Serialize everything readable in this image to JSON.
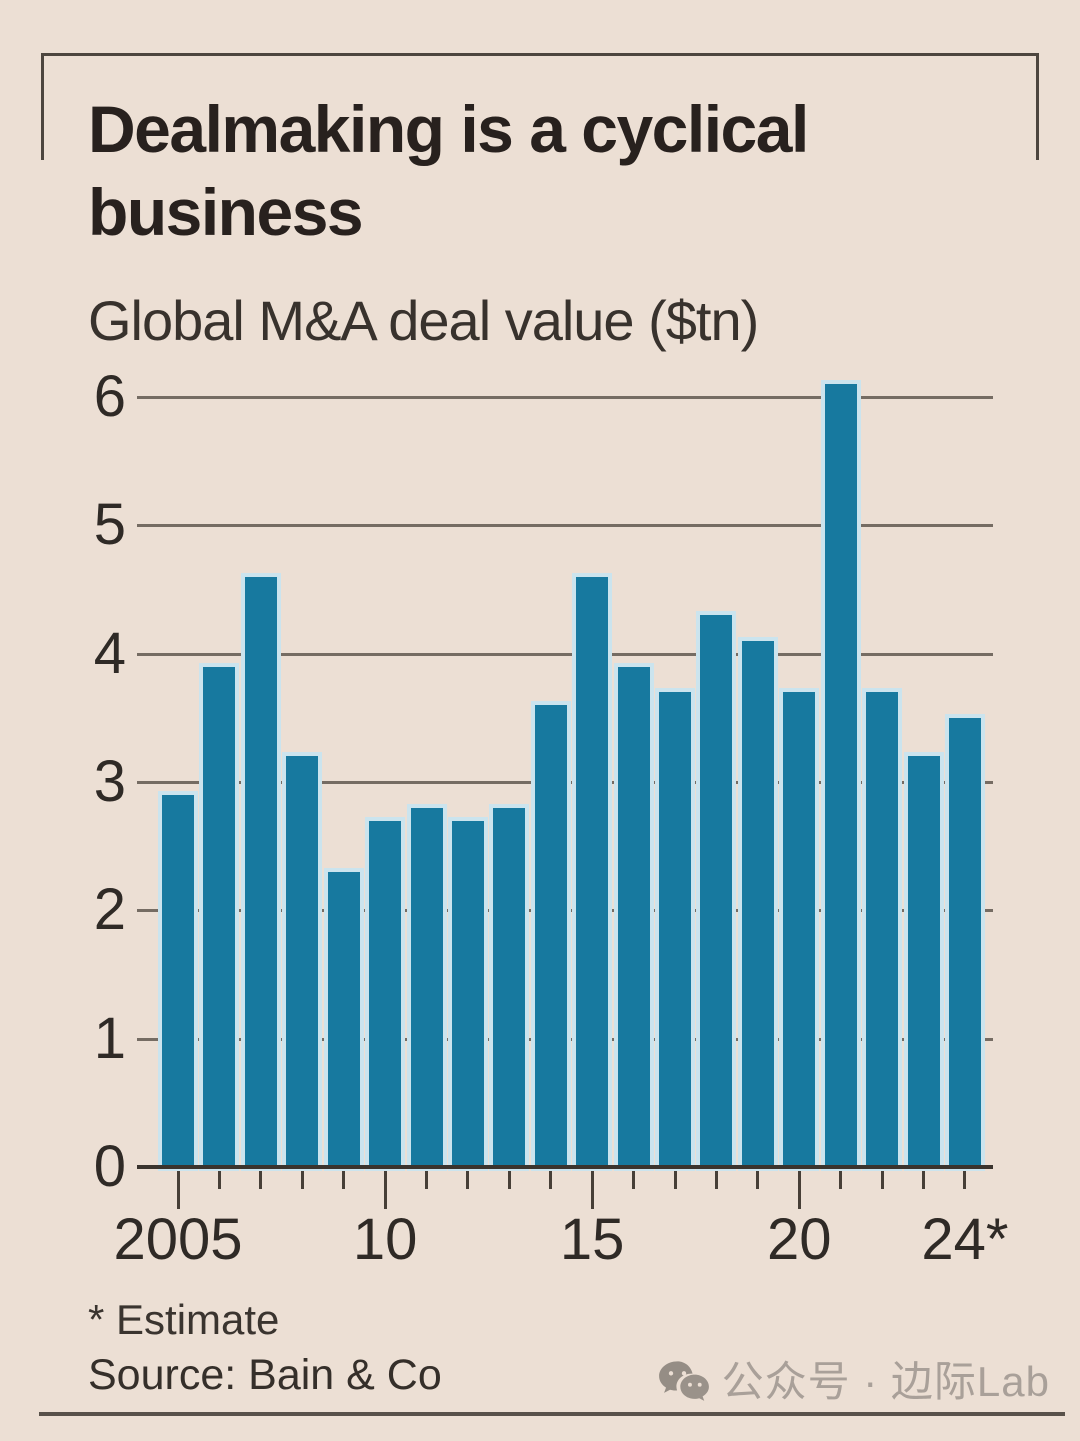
{
  "page": {
    "watermark": {
      "text": "公众号 · 边际Lab",
      "icon": "wechat-logo",
      "color": "#a9a099"
    }
  },
  "chart_data": {
    "type": "bar",
    "title": "Dealmaking is a cyclical\nbusiness",
    "subtitle": "Global M&A deal value ($tn)",
    "categories": [
      "2005",
      "2006",
      "2007",
      "2008",
      "2009",
      "2010",
      "2011",
      "2012",
      "2013",
      "2014",
      "2015",
      "2016",
      "2017",
      "2018",
      "2019",
      "2020",
      "2021",
      "2022",
      "2023",
      "2024"
    ],
    "values": [
      2.9,
      3.9,
      4.6,
      3.2,
      2.3,
      2.7,
      2.8,
      2.7,
      2.8,
      3.6,
      4.6,
      3.9,
      3.7,
      4.3,
      4.1,
      3.7,
      6.1,
      3.7,
      3.2,
      3.5
    ],
    "ylim": [
      0,
      6
    ],
    "yticks": [
      0,
      1,
      2,
      3,
      4,
      5,
      6
    ],
    "x_axis_labels": [
      {
        "label": "2005",
        "index": 0
      },
      {
        "label": "10",
        "index": 5
      },
      {
        "label": "15",
        "index": 10
      },
      {
        "label": "20",
        "index": 15
      },
      {
        "label": "24*",
        "index": 19
      }
    ],
    "x_major_indices": [
      0,
      5,
      10,
      15
    ],
    "bar_color": "#17799f",
    "grid": "horizontal",
    "legend": "none",
    "footnote": "* Estimate",
    "source": "Source: Bain & Co"
  }
}
